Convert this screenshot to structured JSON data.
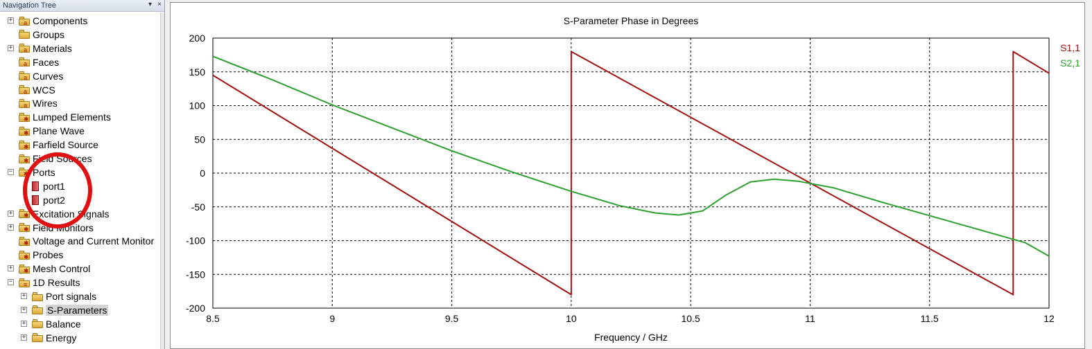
{
  "nav": {
    "title": "Navigation Tree",
    "items": [
      {
        "label": "Components",
        "expander": "+",
        "badge": "a",
        "level": 0
      },
      {
        "label": "Groups",
        "expander": "",
        "badge": "",
        "level": 0
      },
      {
        "label": "Materials",
        "expander": "+",
        "badge": "a",
        "level": 0
      },
      {
        "label": "Faces",
        "expander": "",
        "badge": "a",
        "level": 0
      },
      {
        "label": "Curves",
        "expander": "",
        "badge": "a",
        "level": 0
      },
      {
        "label": "WCS",
        "expander": "",
        "badge": "a",
        "level": 0
      },
      {
        "label": "Wires",
        "expander": "",
        "badge": "a",
        "level": 0
      },
      {
        "label": "Lumped Elements",
        "expander": "",
        "badge": "✱",
        "level": 0
      },
      {
        "label": "Plane Wave",
        "expander": "",
        "badge": "✱",
        "level": 0
      },
      {
        "label": "Farfield Source",
        "expander": "",
        "badge": "✱",
        "level": 0
      },
      {
        "label": "Field Sources",
        "expander": "",
        "badge": "✱",
        "level": 0
      },
      {
        "label": "Ports",
        "expander": "−",
        "badge": "✱",
        "level": 0
      },
      {
        "label": "port1",
        "expander": "",
        "badge": "",
        "level": 1,
        "port": true
      },
      {
        "label": "port2",
        "expander": "",
        "badge": "",
        "level": 1,
        "port": true
      },
      {
        "label": "Excitation Signals",
        "expander": "+",
        "badge": "✱",
        "level": 0
      },
      {
        "label": "Field Monitors",
        "expander": "+",
        "badge": "✱",
        "level": 0
      },
      {
        "label": "Voltage and Current Monitor",
        "expander": "",
        "badge": "✱",
        "level": 0
      },
      {
        "label": "Probes",
        "expander": "",
        "badge": "✱",
        "level": 0
      },
      {
        "label": "Mesh Control",
        "expander": "+",
        "badge": "✱",
        "level": 0
      },
      {
        "label": "1D Results",
        "expander": "−",
        "badge": "≡",
        "level": 0
      },
      {
        "label": "Port signals",
        "expander": "+",
        "badge": "",
        "level": 1
      },
      {
        "label": "S-Parameters",
        "expander": "+",
        "badge": "",
        "level": 1,
        "selected": true
      },
      {
        "label": "Balance",
        "expander": "+",
        "badge": "",
        "level": 1
      },
      {
        "label": "Energy",
        "expander": "+",
        "badge": "",
        "level": 1
      }
    ]
  },
  "chart_data": {
    "type": "line",
    "title": "S-Parameter Phase in Degrees",
    "xlabel": "Frequency / GHz",
    "ylabel": "",
    "xlim": [
      8.5,
      12
    ],
    "ylim": [
      -200,
      200
    ],
    "xticks": [
      "8.5",
      "9",
      "9.5",
      "10",
      "10.5",
      "11",
      "11.5",
      "12"
    ],
    "yticks": [
      "200",
      "150",
      "100",
      "50",
      "0",
      "-50",
      "-100",
      "-150",
      "-200"
    ],
    "grid": true,
    "legend_position": "top-right",
    "series": [
      {
        "name": "S1,1",
        "color": "#a01010",
        "x": [
          8.5,
          10.0,
          10.0,
          11.85,
          11.85,
          12.0
        ],
        "y": [
          145,
          -180,
          180,
          -180,
          180,
          148
        ]
      },
      {
        "name": "S2,1",
        "color": "#2ca02c",
        "x": [
          8.5,
          8.75,
          9.0,
          9.25,
          9.5,
          9.75,
          10.0,
          10.2,
          10.35,
          10.45,
          10.55,
          10.65,
          10.75,
          10.85,
          10.95,
          11.1,
          11.3,
          11.5,
          11.7,
          11.9,
          12.0
        ],
        "y": [
          173,
          138,
          101,
          67,
          33,
          2,
          -27,
          -48,
          -59,
          -62,
          -56,
          -32,
          -13,
          -9,
          -12,
          -22,
          -43,
          -63,
          -83,
          -103,
          -123
        ]
      }
    ]
  }
}
